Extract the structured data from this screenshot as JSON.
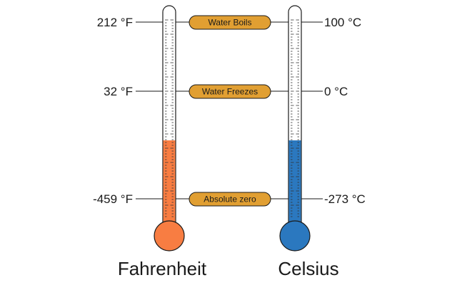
{
  "landmarks": [
    {
      "name": "Water Boils",
      "fahrenheit": "212 °F",
      "celsius": "100 °C"
    },
    {
      "name": "Water Freezes",
      "fahrenheit": "32 °F",
      "celsius": "0 °C"
    },
    {
      "name": "Absolute zero",
      "fahrenheit": "-459 °F",
      "celsius": "-273 °C"
    }
  ],
  "thermometers": {
    "fahrenheit": {
      "title": "Fahrenheit",
      "color": "#F87D42"
    },
    "celsius": {
      "title": "Celsius",
      "color": "#2B78BF"
    }
  },
  "colors": {
    "pill_fill": "#E19F32",
    "outline": "#1a1a1a",
    "text": "#1a1a1a"
  }
}
